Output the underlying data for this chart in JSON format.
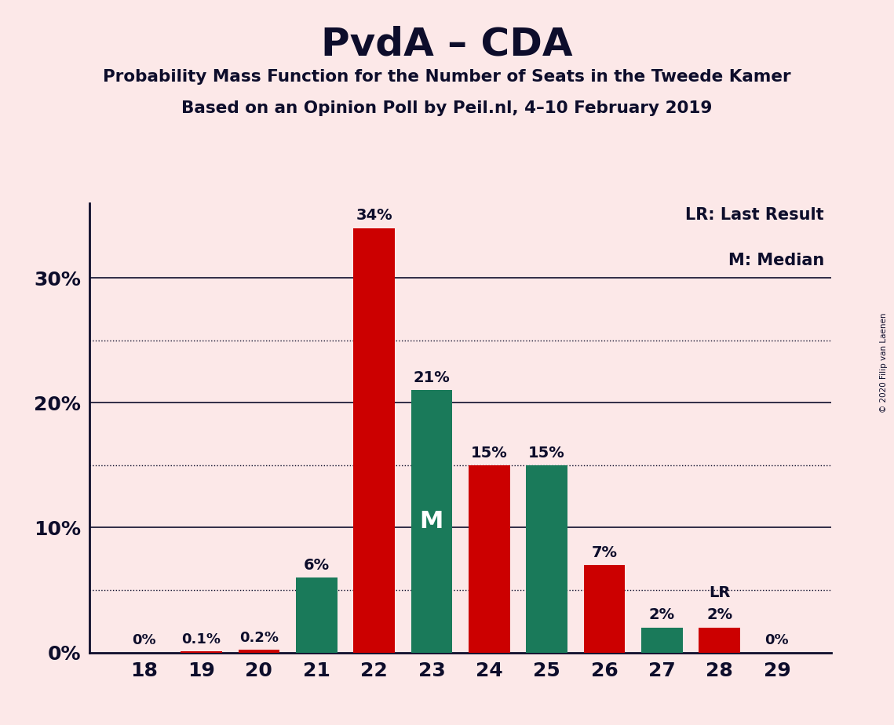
{
  "title": "PvdA – CDA",
  "subtitle1": "Probability Mass Function for the Number of Seats in the Tweede Kamer",
  "subtitle2": "Based on an Opinion Poll by Peil.nl, 4–10 February 2019",
  "copyright": "© 2020 Filip van Laenen",
  "categories": [
    18,
    19,
    20,
    21,
    22,
    23,
    24,
    25,
    26,
    27,
    28,
    29
  ],
  "values": [
    0.0,
    0.1,
    0.2,
    6.0,
    34.0,
    21.0,
    15.0,
    15.0,
    7.0,
    2.0,
    2.0,
    0.0
  ],
  "colors": [
    "#cc0000",
    "#cc0000",
    "#cc0000",
    "#1a7a5a",
    "#cc0000",
    "#1a7a5a",
    "#cc0000",
    "#1a7a5a",
    "#cc0000",
    "#1a7a5a",
    "#cc0000",
    "#cc0000"
  ],
  "bar_labels": [
    "0%",
    "0.1%",
    "0.2%",
    "6%",
    "34%",
    "21%",
    "15%",
    "15%",
    "7%",
    "2%",
    "2%",
    "0%"
  ],
  "median_cat": 23,
  "lr_cat": 28,
  "background_color": "#fce8e8",
  "text_color": "#0d0d2b",
  "ylim": [
    0,
    36
  ],
  "yticks": [
    0,
    10,
    20,
    30
  ],
  "ytick_labels": [
    "0%",
    "10%",
    "20%",
    "30%"
  ],
  "dotted_yticks": [
    5,
    15,
    25
  ],
  "legend_text1": "LR: Last Result",
  "legend_text2": "M: Median",
  "median_label": "M",
  "lr_label": "LR"
}
